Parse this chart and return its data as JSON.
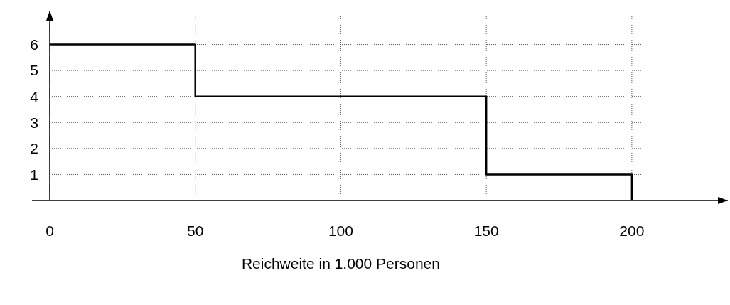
{
  "chart_data": {
    "type": "step",
    "xlabel": "Reichweite in 1.000 Personen",
    "x": [
      0,
      50,
      150,
      200
    ],
    "series": [
      {
        "color": "#000000",
        "values": [
          6,
          4,
          1,
          0
        ]
      }
    ],
    "xlim": [
      0,
      233
    ],
    "xticks": [
      0,
      50,
      100,
      150,
      200
    ],
    "ylim": [
      0,
      7.3
    ],
    "yticks": [
      1,
      2,
      3,
      4,
      5,
      6
    ],
    "grid": true
  }
}
